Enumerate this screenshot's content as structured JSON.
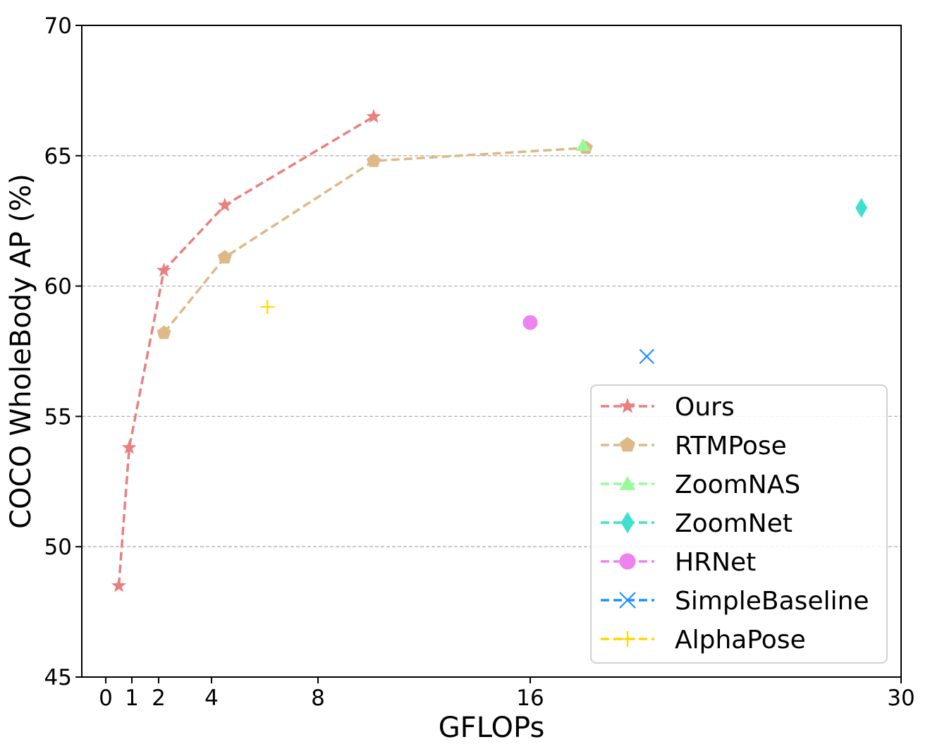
{
  "chart_data": {
    "type": "line",
    "title": "",
    "xlabel": "GFLOPs",
    "ylabel": "COCO WholeBody AP (%)",
    "xlim": [
      -0.9,
      30
    ],
    "ylim": [
      45,
      70
    ],
    "x_scale": "piecewise-linear",
    "x_scale_knots": [
      [
        0,
        0
      ],
      [
        1,
        1
      ],
      [
        2,
        2
      ],
      [
        4,
        4
      ],
      [
        8,
        8
      ],
      [
        16,
        16
      ],
      [
        30,
        30
      ]
    ],
    "x_ticks": [
      {
        "value": 0,
        "label": "0"
      },
      {
        "value": 1,
        "label": "1"
      },
      {
        "value": 2,
        "label": "2"
      },
      {
        "value": 4,
        "label": "4"
      },
      {
        "value": 8,
        "label": "8"
      },
      {
        "value": 16,
        "label": "16"
      },
      {
        "value": 30,
        "label": "30"
      }
    ],
    "y_ticks": [
      {
        "value": 45,
        "label": "45"
      },
      {
        "value": 50,
        "label": "50"
      },
      {
        "value": 55,
        "label": "55"
      },
      {
        "value": 60,
        "label": "60"
      },
      {
        "value": 65,
        "label": "65"
      },
      {
        "value": 70,
        "label": "70"
      }
    ],
    "grid": {
      "y": true,
      "x": false,
      "style": "dashed",
      "color": "#b0b0b0"
    },
    "legend_position": "bottom-right",
    "series": [
      {
        "name": "Ours",
        "color": "#e88080",
        "marker": "star",
        "line": "dashed",
        "points": [
          {
            "x": 0.5,
            "y": 48.5
          },
          {
            "x": 0.9,
            "y": 53.8
          },
          {
            "x": 2.2,
            "y": 60.6
          },
          {
            "x": 4.5,
            "y": 63.1
          },
          {
            "x": 10.1,
            "y": 66.5
          }
        ]
      },
      {
        "name": "RTMPose",
        "color": "#deb887",
        "marker": "pentagon",
        "line": "dashed",
        "points": [
          {
            "x": 2.2,
            "y": 58.2
          },
          {
            "x": 4.5,
            "y": 61.1
          },
          {
            "x": 10.1,
            "y": 64.8
          },
          {
            "x": 18.1,
            "y": 65.3
          }
        ]
      },
      {
        "name": "ZoomNAS",
        "color": "#98fb98",
        "marker": "triangle",
        "line": "dashed",
        "points": [
          {
            "x": 18.0,
            "y": 65.4
          }
        ]
      },
      {
        "name": "ZoomNet",
        "color": "#40e0d0",
        "marker": "diamond",
        "line": "dashed",
        "points": [
          {
            "x": 28.5,
            "y": 63.0
          }
        ]
      },
      {
        "name": "HRNet",
        "color": "#ee82ee",
        "marker": "circle",
        "line": "dashed",
        "points": [
          {
            "x": 16.0,
            "y": 58.6
          }
        ]
      },
      {
        "name": "SimpleBaseline",
        "color": "#1e90ff",
        "marker": "x",
        "line": "dashed",
        "points": [
          {
            "x": 20.4,
            "y": 57.3
          }
        ]
      },
      {
        "name": "AlphaPose",
        "color": "#ffd700",
        "marker": "plus",
        "line": "dashed",
        "points": [
          {
            "x": 6.1,
            "y": 59.2
          }
        ]
      }
    ]
  }
}
